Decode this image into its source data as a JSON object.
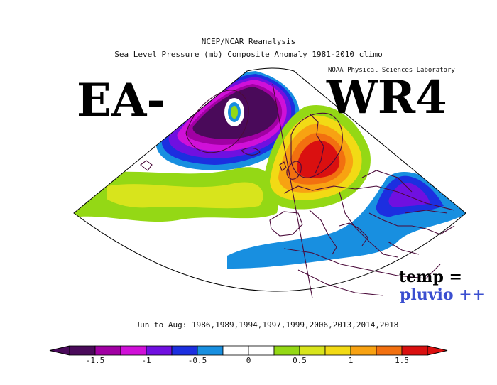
{
  "title_line1": "NCEP/NCAR Reanalysis",
  "title_line2": "Sea Level Pressure (mb) Composite Anomaly 1981-2010 climo",
  "lab_label": "NOAA Physical Sciences Laboratory",
  "ea_label": "EA-",
  "wr_label": "WR4",
  "temp_note": "temp =",
  "pluvio_note": "pluvio ++",
  "period": "Jun to Aug: 1986,1989,1994,1997,1999,2006,2013,2014,2018",
  "colors": {
    "pluvio": "#3b4fd0",
    "scale": [
      "#4a0a5a",
      "#a100a3",
      "#d010d8",
      "#7010e0",
      "#1c2fe0",
      "#188fe0",
      "#ffffff",
      "#ffffff",
      "#94d815",
      "#d8e41c",
      "#f2da15",
      "#f8a212",
      "#f27010",
      "#da1010"
    ]
  },
  "colorbar": {
    "ticks": [
      -1.5,
      -1,
      -0.5,
      0,
      0.5,
      1,
      1.5
    ],
    "tick_labels": [
      "-1.5",
      "-1",
      "-0.5",
      "0",
      "0.5",
      "1",
      "1.5"
    ],
    "min": -1.75,
    "max": 1.75
  }
}
